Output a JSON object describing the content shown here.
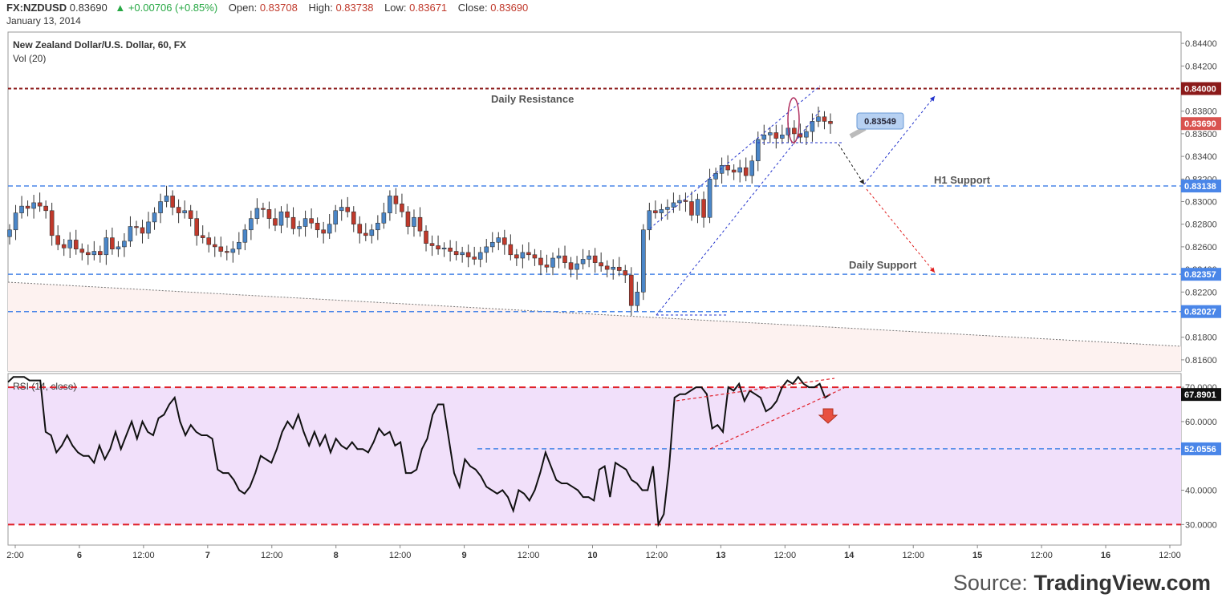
{
  "header": {
    "symbol": "FX:NZDUSD",
    "last": "0.83690",
    "change": "+0.00706 (+0.85%)",
    "open_label": "Open:",
    "open": "0.83708",
    "high_label": "High:",
    "high": "0.83738",
    "low_label": "Low:",
    "low": "0.83671",
    "close_label": "Close:",
    "close": "0.83690",
    "date": "January 13, 2014"
  },
  "pane_titles": {
    "main": "New Zealand Dollar/U.S. Dollar, 60, FX",
    "volume": "Vol (20)",
    "rsi": "RSI (14, close)"
  },
  "annotations": {
    "daily_resistance": "Daily Resistance",
    "h1_support": "H1 Support",
    "daily_support": "Daily Support",
    "callout": "0.83549"
  },
  "source": {
    "prefix": "Source:",
    "brand": "TradingView.com"
  },
  "colors": {
    "bull": "#4a86c8",
    "bear": "#c0392b",
    "resistance": "#8b1a1a",
    "support": "#4a86e8",
    "rsi_band": "#e0202a",
    "rsi_fill": "#f1e0fa",
    "channel": "#2233cc",
    "projection_down": "#e02020"
  },
  "chart_data": [
    {
      "type": "candlestick",
      "title": "New Zealand Dollar/U.S. Dollar, 60, FX",
      "ylim": [
        0.815,
        0.845
      ],
      "y_ticks": [
        0.816,
        0.818,
        0.82,
        0.822,
        0.824,
        0.826,
        0.828,
        0.83,
        0.832,
        0.834,
        0.836,
        0.838,
        0.842,
        0.844
      ],
      "y_tick_labels": [
        "0.81600",
        "0.81800",
        "0.82000",
        "0.82200",
        "0.82400",
        "0.82600",
        "0.82800",
        "0.83000",
        "0.83200",
        "0.83400",
        "0.83600",
        "0.83800",
        "0.84200",
        "0.84400"
      ],
      "x_tick_labels": [
        "2:00",
        "6",
        "12:00",
        "7",
        "12:00",
        "8",
        "12:00",
        "9",
        "12:00",
        "10",
        "12:00",
        "13",
        "12:00",
        "14",
        "12:00",
        "15",
        "12:00",
        "16",
        "12:00"
      ],
      "levels": [
        {
          "name": "Daily Resistance",
          "value": 0.84,
          "label": "0.84000",
          "style": "resistance"
        },
        {
          "name": "H1 Support",
          "value": 0.83138,
          "label": "0.83138",
          "style": "support"
        },
        {
          "name": "Daily Support",
          "value": 0.82357,
          "label": "0.82357",
          "style": "support"
        },
        {
          "name": "",
          "value": 0.82027,
          "label": "0.82027",
          "style": "support"
        }
      ],
      "last_price": {
        "value": 0.8369,
        "label": "0.83690"
      },
      "closes": [
        0.8275,
        0.829,
        0.8296,
        0.8294,
        0.8299,
        0.8296,
        0.8292,
        0.827,
        0.8262,
        0.8259,
        0.8266,
        0.8258,
        0.8255,
        0.8253,
        0.8256,
        0.8253,
        0.8268,
        0.8258,
        0.826,
        0.8265,
        0.8278,
        0.8277,
        0.8272,
        0.8282,
        0.829,
        0.83,
        0.8305,
        0.8295,
        0.829,
        0.8292,
        0.8285,
        0.827,
        0.8268,
        0.8262,
        0.826,
        0.8256,
        0.8255,
        0.8258,
        0.8264,
        0.8275,
        0.8285,
        0.8294,
        0.8293,
        0.8285,
        0.8279,
        0.8291,
        0.8286,
        0.8276,
        0.8278,
        0.8285,
        0.8281,
        0.8275,
        0.8272,
        0.828,
        0.8292,
        0.8295,
        0.8291,
        0.828,
        0.8272,
        0.827,
        0.8275,
        0.8281,
        0.829,
        0.8305,
        0.8298,
        0.8291,
        0.8278,
        0.8286,
        0.8274,
        0.8263,
        0.8261,
        0.8258,
        0.8259,
        0.8256,
        0.8253,
        0.8255,
        0.8251,
        0.8249,
        0.8255,
        0.826,
        0.8264,
        0.8268,
        0.8262,
        0.8253,
        0.825,
        0.8255,
        0.8253,
        0.825,
        0.8244,
        0.8242,
        0.825,
        0.8252,
        0.8246,
        0.824,
        0.8245,
        0.8249,
        0.8252,
        0.8246,
        0.8243,
        0.824,
        0.8242,
        0.8239,
        0.8235,
        0.8208,
        0.822,
        0.8275,
        0.8292,
        0.829,
        0.8293,
        0.8295,
        0.8299,
        0.8301,
        0.83,
        0.8288,
        0.8302,
        0.8286,
        0.832,
        0.8325,
        0.8332,
        0.8328,
        0.8326,
        0.833,
        0.8323,
        0.8336,
        0.8355,
        0.8359,
        0.8361,
        0.8356,
        0.8359,
        0.8365,
        0.836,
        0.8357,
        0.8362,
        0.8371,
        0.8375,
        0.8371,
        0.8369
      ]
    },
    {
      "type": "line",
      "title": "RSI (14, close)",
      "ylim": [
        24,
        74
      ],
      "y_ticks": [
        30,
        40,
        60,
        70
      ],
      "y_tick_labels": [
        "30.0000",
        "40.0000",
        "60.0000",
        "70.0000"
      ],
      "bands": [
        70,
        30
      ],
      "levels": [
        {
          "value": 67.8901,
          "label": "67.8901",
          "style": "current"
        },
        {
          "value": 52.0556,
          "label": "52.0556",
          "style": "support"
        }
      ],
      "values": [
        71.5,
        73,
        73,
        73,
        72,
        72,
        72,
        57,
        56,
        51,
        53,
        56,
        53,
        51,
        50,
        50,
        48,
        53,
        49,
        52,
        57,
        52,
        56,
        60,
        55,
        60,
        57,
        56,
        61,
        62,
        65,
        67,
        60,
        56,
        59,
        57,
        56,
        56,
        55,
        46,
        45,
        45,
        43,
        40,
        39,
        41,
        45,
        50,
        49,
        48,
        52,
        57,
        60,
        58,
        62,
        57,
        53,
        57,
        53,
        56,
        51,
        55,
        53,
        52,
        54,
        52,
        52,
        51,
        54,
        58,
        56,
        57,
        53,
        54,
        45,
        45,
        46,
        52,
        55,
        62,
        65,
        65,
        55,
        45,
        41,
        49,
        47,
        46,
        44,
        41,
        40,
        39,
        40,
        38,
        34,
        40,
        39,
        37,
        40,
        45,
        51,
        47,
        43,
        42,
        42,
        41,
        40,
        38,
        38,
        37,
        46,
        47,
        38,
        48,
        47,
        46,
        43,
        42,
        40,
        40,
        47,
        30,
        33,
        47,
        67,
        68,
        68,
        69,
        70,
        70,
        68,
        58,
        59,
        57,
        70,
        69,
        71,
        66,
        69,
        68,
        67,
        63,
        64,
        66,
        70,
        72,
        71,
        73,
        71,
        70,
        70,
        71,
        67,
        68
      ]
    }
  ]
}
